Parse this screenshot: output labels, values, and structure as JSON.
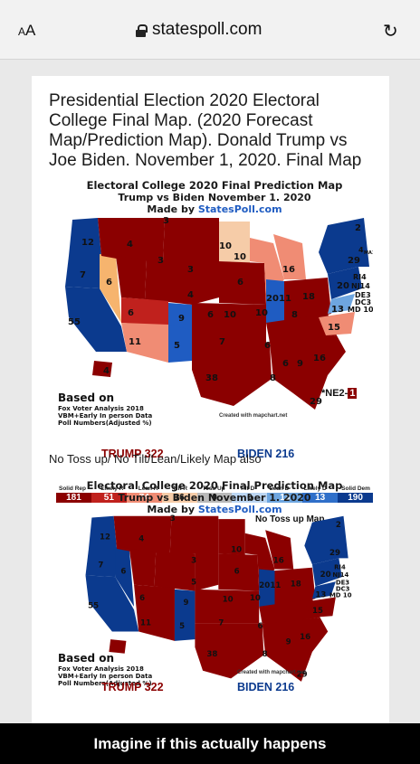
{
  "browser": {
    "aa_label": "AA",
    "url": "statespoll.com"
  },
  "article": {
    "title": "Presidential Election 2020 Electoral College  Final Map. (2020 Forecast Map/Prediction Map). Donald Trump vs Joe Biden. November 1, 2020. Final Map",
    "middle_text": "No Toss up/ No Tilt/Lean/Likely Map also"
  },
  "map1": {
    "title": "Electoral College 2020  Final Prediction Map",
    "subtitle": "Trump vs Biden   November 1. 2020",
    "made_by_prefix": "Made by ",
    "made_by_site": "StatesPoll.com",
    "based_on": "Based on",
    "based_on_detail": [
      "Fox Voter Analysis 2018",
      "VBM+Early In person Data",
      "Poll Numbers(Adjusted %)"
    ],
    "credit": "Created with mapchart.net",
    "ne_label": "*NE2-",
    "ne_value": "1",
    "trump_total": "TRUMP  322",
    "biden_total": "BIDEN  216",
    "legend_labels": [
      "Solid Rep",
      "Likely R",
      "Lean R",
      "Tilt R",
      "Toss Up",
      "Tilt D",
      "Lean D",
      "Likely D",
      "Solid Dem"
    ],
    "legend_values": [
      "181",
      "51",
      "74",
      "16",
      "0",
      "0",
      "13",
      "13",
      "190"
    ],
    "legend_colors": [
      "#8b0000",
      "#c0211d",
      "#f08c74",
      "#f6cca8",
      "#b9b9b9",
      "#bcd6f3",
      "#6ea6e0",
      "#2f6fc9",
      "#0b3a8e"
    ],
    "state_numbers": [
      "12",
      "3",
      "3",
      "10",
      "7",
      "4",
      "10",
      "3",
      "29",
      "4",
      "6",
      "16",
      "20",
      "6",
      "9",
      "5",
      "20",
      "11",
      "18",
      "13",
      "55",
      "6",
      "10",
      "11",
      "5",
      "7",
      "6",
      "15",
      "38",
      "8",
      "6",
      "9",
      "16",
      "29"
    ],
    "side_numbers": [
      "2",
      "4 MA11",
      "RI4",
      "NJ14",
      "DE3",
      "DC3",
      "MD 10"
    ]
  },
  "map2": {
    "title": "Electoral College 2020  Final Prediction Map",
    "subtitle": "Trump vs Biden   November 1. 2020",
    "made_by_prefix": "Made by ",
    "made_by_site": "StatesPoll.com",
    "tossup_note": "No Toss up Map",
    "based_on": "Based on",
    "based_on_detail": [
      "Fox Voter Analysis 2018",
      "VBM+Early In person Data",
      "Poll Numbers(Adjusted %)"
    ],
    "credit": "Created with mapchart.net",
    "trump_total": "TRUMP  322",
    "biden_total": "BIDEN  216",
    "side_numbers": [
      "2",
      "4 MA11",
      "RI4",
      "NJ14",
      "DE3",
      "DC3",
      "MD 10"
    ]
  },
  "meme": {
    "caption": "Imagine if this actually happens"
  }
}
